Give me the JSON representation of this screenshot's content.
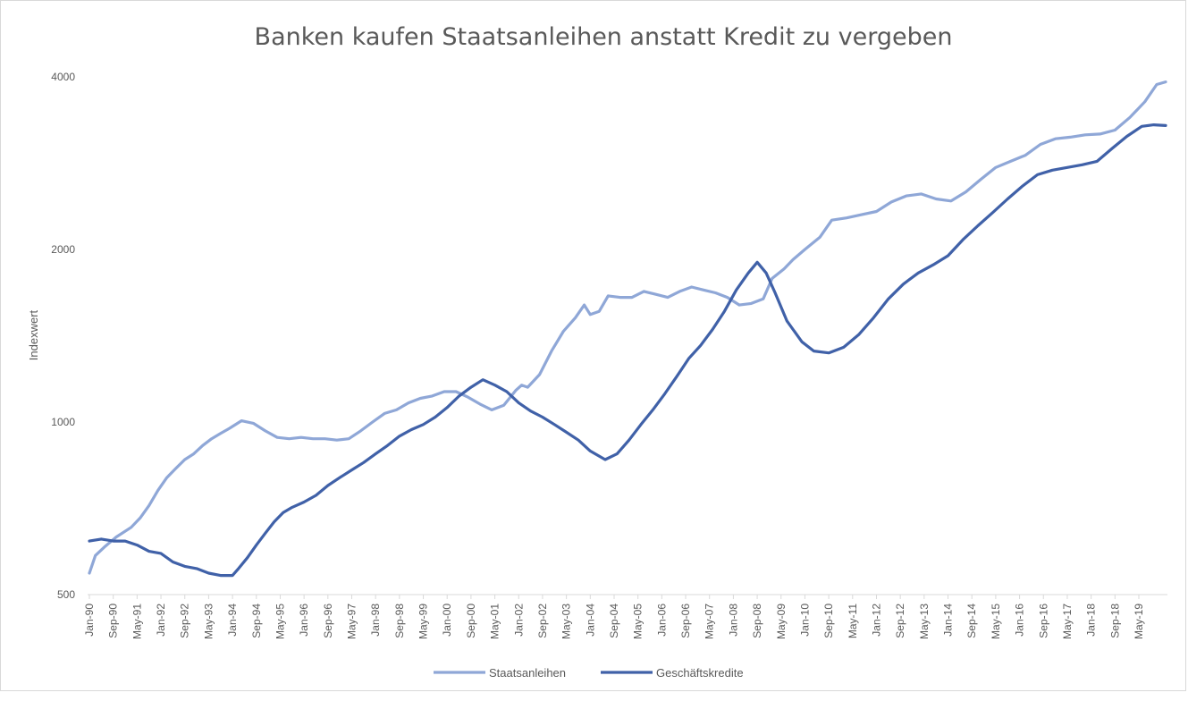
{
  "chart_data": {
    "type": "line",
    "title": "Banken kaufen Staatsanleihen anstatt Kredit zu vergeben",
    "xlabel": "",
    "ylabel": "Indexwert",
    "y_scale": "log",
    "ylim": [
      500,
      4000
    ],
    "y_ticks": [
      "500",
      "1000",
      "2000",
      "4000"
    ],
    "grid": false,
    "legend_position": "bottom",
    "x_tick_labels": [
      "Jan-90",
      "Sep-90",
      "May-91",
      "Jan-92",
      "Sep-92",
      "May-93",
      "Jan-94",
      "Sep-94",
      "May-95",
      "Jan-96",
      "Sep-96",
      "May-97",
      "Jan-98",
      "Sep-98",
      "May-99",
      "Jan-00",
      "Sep-00",
      "May-01",
      "Jan-02",
      "Sep-02",
      "May-03",
      "Jan-04",
      "Sep-04",
      "May-05",
      "Jan-06",
      "Sep-06",
      "May-07",
      "Jan-08",
      "Sep-08",
      "May-09",
      "Jan-10",
      "Sep-10",
      "May-11",
      "Jan-12",
      "Sep-12",
      "May-13",
      "Jan-14",
      "Sep-14",
      "May-15",
      "Jan-16",
      "Sep-16",
      "May-17",
      "Jan-18",
      "Sep-18",
      "May-19"
    ],
    "x_range": [
      "Jan-90",
      "Feb-20"
    ],
    "series": [
      {
        "name": "Staatsanleihen",
        "color": "#8FA7D7",
        "points": [
          [
            "Jan-90",
            545
          ],
          [
            "Mar-90",
            585
          ],
          [
            "Jun-90",
            605
          ],
          [
            "Oct-90",
            630
          ],
          [
            "Mar-91",
            655
          ],
          [
            "Jun-91",
            680
          ],
          [
            "Sep-91",
            715
          ],
          [
            "Dec-91",
            760
          ],
          [
            "Mar-92",
            800
          ],
          [
            "Jun-92",
            830
          ],
          [
            "Sep-92",
            860
          ],
          [
            "Dec-92",
            880
          ],
          [
            "Mar-93",
            910
          ],
          [
            "Jun-93",
            935
          ],
          [
            "Sep-93",
            955
          ],
          [
            "Dec-93",
            975
          ],
          [
            "Apr-94",
            1005
          ],
          [
            "Aug-94",
            995
          ],
          [
            "Dec-94",
            965
          ],
          [
            "Apr-95",
            940
          ],
          [
            "Aug-95",
            935
          ],
          [
            "Dec-95",
            940
          ],
          [
            "Apr-96",
            935
          ],
          [
            "Aug-96",
            935
          ],
          [
            "Dec-96",
            930
          ],
          [
            "Apr-97",
            935
          ],
          [
            "Aug-97",
            965
          ],
          [
            "Dec-97",
            1000
          ],
          [
            "Apr-98",
            1035
          ],
          [
            "Aug-98",
            1050
          ],
          [
            "Dec-98",
            1080
          ],
          [
            "Apr-99",
            1100
          ],
          [
            "Aug-99",
            1110
          ],
          [
            "Dec-99",
            1130
          ],
          [
            "Apr-00",
            1130
          ],
          [
            "Aug-00",
            1105
          ],
          [
            "Dec-00",
            1075
          ],
          [
            "Apr-01",
            1050
          ],
          [
            "Aug-01",
            1070
          ],
          [
            "Dec-01",
            1135
          ],
          [
            "Feb-02",
            1160
          ],
          [
            "Apr-02",
            1150
          ],
          [
            "Aug-02",
            1210
          ],
          [
            "Dec-02",
            1330
          ],
          [
            "Apr-03",
            1440
          ],
          [
            "Aug-03",
            1520
          ],
          [
            "Nov-03",
            1600
          ],
          [
            "Jan-04",
            1540
          ],
          [
            "Apr-04",
            1560
          ],
          [
            "Jul-04",
            1660
          ],
          [
            "Nov-04",
            1650
          ],
          [
            "Mar-05",
            1650
          ],
          [
            "Jul-05",
            1690
          ],
          [
            "Nov-05",
            1670
          ],
          [
            "Mar-06",
            1650
          ],
          [
            "Jul-06",
            1690
          ],
          [
            "Nov-06",
            1720
          ],
          [
            "Mar-07",
            1700
          ],
          [
            "Jul-07",
            1680
          ],
          [
            "Nov-07",
            1650
          ],
          [
            "Mar-08",
            1600
          ],
          [
            "Jul-08",
            1610
          ],
          [
            "Nov-08",
            1640
          ],
          [
            "Feb-09",
            1780
          ],
          [
            "Jun-09",
            1850
          ],
          [
            "Sep-09",
            1920
          ],
          [
            "Jan-10",
            2000
          ],
          [
            "Jun-10",
            2100
          ],
          [
            "Oct-10",
            2250
          ],
          [
            "Mar-11",
            2270
          ],
          [
            "Aug-11",
            2300
          ],
          [
            "Jan-12",
            2330
          ],
          [
            "Jun-12",
            2420
          ],
          [
            "Nov-12",
            2480
          ],
          [
            "Apr-13",
            2500
          ],
          [
            "Sep-13",
            2450
          ],
          [
            "Feb-14",
            2430
          ],
          [
            "Jul-14",
            2520
          ],
          [
            "Dec-14",
            2650
          ],
          [
            "May-15",
            2780
          ],
          [
            "Oct-15",
            2850
          ],
          [
            "Mar-16",
            2920
          ],
          [
            "Aug-16",
            3050
          ],
          [
            "Jan-17",
            3120
          ],
          [
            "Jun-17",
            3140
          ],
          [
            "Nov-17",
            3170
          ],
          [
            "Apr-18",
            3180
          ],
          [
            "Sep-18",
            3230
          ],
          [
            "Feb-19",
            3400
          ],
          [
            "Jul-19",
            3620
          ],
          [
            "Nov-19",
            3880
          ],
          [
            "Feb-20",
            3920
          ]
        ]
      },
      {
        "name": "Geschäftskredite",
        "color": "#4061A8",
        "points": [
          [
            "Jan-90",
            620
          ],
          [
            "May-90",
            625
          ],
          [
            "Sep-90",
            620
          ],
          [
            "Jan-91",
            620
          ],
          [
            "May-91",
            610
          ],
          [
            "Sep-91",
            595
          ],
          [
            "Jan-92",
            590
          ],
          [
            "May-92",
            570
          ],
          [
            "Sep-92",
            560
          ],
          [
            "Jan-93",
            555
          ],
          [
            "May-93",
            545
          ],
          [
            "Sep-93",
            540
          ],
          [
            "Jan-94",
            540
          ],
          [
            "Mar-94",
            555
          ],
          [
            "Jun-94",
            580
          ],
          [
            "Sep-94",
            610
          ],
          [
            "Dec-94",
            640
          ],
          [
            "Mar-95",
            670
          ],
          [
            "Jun-95",
            695
          ],
          [
            "Sep-95",
            710
          ],
          [
            "Jan-96",
            725
          ],
          [
            "May-96",
            745
          ],
          [
            "Sep-96",
            775
          ],
          [
            "Jan-97",
            800
          ],
          [
            "May-97",
            825
          ],
          [
            "Sep-97",
            850
          ],
          [
            "Jan-98",
            880
          ],
          [
            "May-98",
            910
          ],
          [
            "Sep-98",
            945
          ],
          [
            "Jan-99",
            970
          ],
          [
            "May-99",
            990
          ],
          [
            "Sep-99",
            1020
          ],
          [
            "Jan-00",
            1060
          ],
          [
            "May-00",
            1110
          ],
          [
            "Sep-00",
            1150
          ],
          [
            "Jan-01",
            1185
          ],
          [
            "May-01",
            1160
          ],
          [
            "Sep-01",
            1130
          ],
          [
            "Jan-02",
            1080
          ],
          [
            "May-02",
            1045
          ],
          [
            "Sep-02",
            1020
          ],
          [
            "Jan-03",
            990
          ],
          [
            "May-03",
            960
          ],
          [
            "Sep-03",
            930
          ],
          [
            "Jan-04",
            890
          ],
          [
            "Jun-04",
            860
          ],
          [
            "Oct-04",
            880
          ],
          [
            "Feb-05",
            930
          ],
          [
            "Jun-05",
            990
          ],
          [
            "Oct-05",
            1050
          ],
          [
            "Feb-06",
            1120
          ],
          [
            "Jun-06",
            1200
          ],
          [
            "Oct-06",
            1290
          ],
          [
            "Feb-07",
            1360
          ],
          [
            "Jun-07",
            1450
          ],
          [
            "Oct-07",
            1560
          ],
          [
            "Feb-08",
            1700
          ],
          [
            "Jun-08",
            1820
          ],
          [
            "Sep-08",
            1900
          ],
          [
            "Dec-08",
            1820
          ],
          [
            "Mar-09",
            1680
          ],
          [
            "Jul-09",
            1500
          ],
          [
            "Dec-09",
            1380
          ],
          [
            "Apr-10",
            1330
          ],
          [
            "Sep-10",
            1320
          ],
          [
            "Feb-11",
            1350
          ],
          [
            "Jul-11",
            1420
          ],
          [
            "Dec-11",
            1520
          ],
          [
            "May-12",
            1640
          ],
          [
            "Oct-12",
            1740
          ],
          [
            "Mar-13",
            1820
          ],
          [
            "Aug-13",
            1880
          ],
          [
            "Jan-14",
            1950
          ],
          [
            "Jun-14",
            2080
          ],
          [
            "Nov-14",
            2200
          ],
          [
            "Apr-15",
            2320
          ],
          [
            "Sep-15",
            2450
          ],
          [
            "Feb-16",
            2580
          ],
          [
            "Jul-16",
            2700
          ],
          [
            "Dec-16",
            2750
          ],
          [
            "May-17",
            2780
          ],
          [
            "Oct-17",
            2810
          ],
          [
            "Mar-18",
            2850
          ],
          [
            "Aug-18",
            3000
          ],
          [
            "Jan-19",
            3150
          ],
          [
            "Jun-19",
            3280
          ],
          [
            "Oct-19",
            3300
          ],
          [
            "Feb-20",
            3290
          ]
        ]
      }
    ]
  }
}
